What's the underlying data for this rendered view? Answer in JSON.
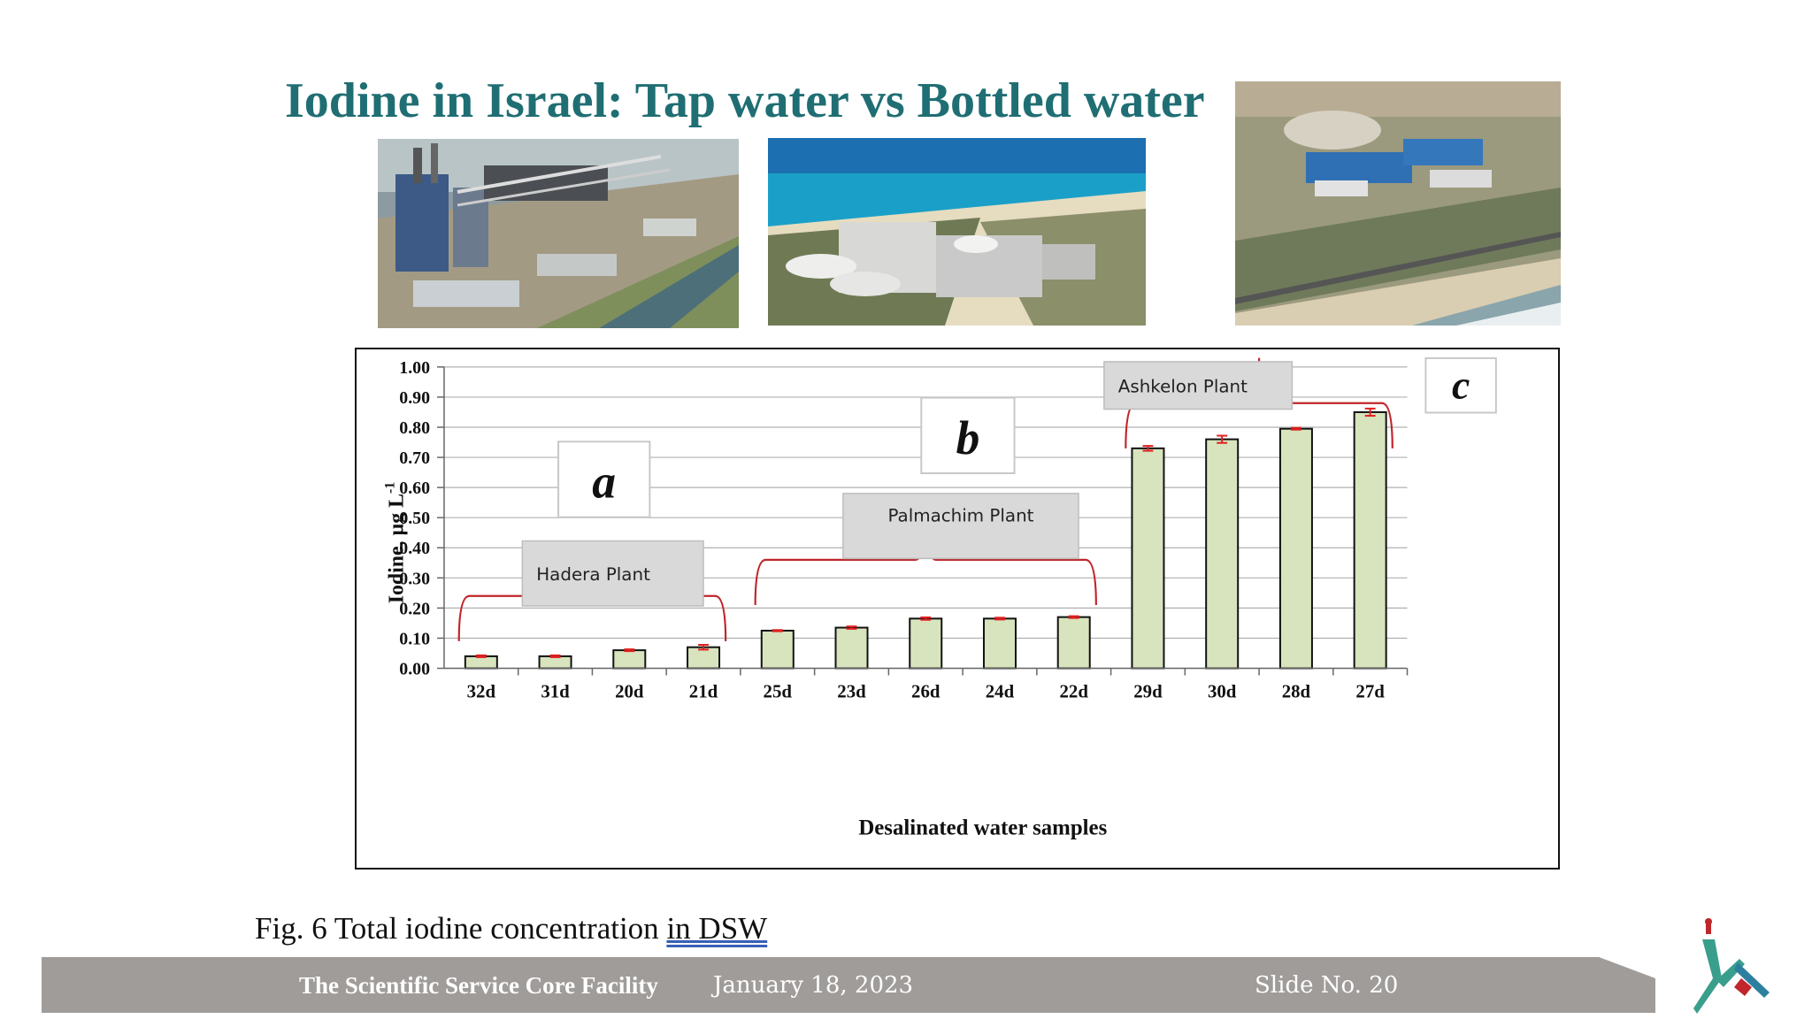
{
  "slide": {
    "title": "Iodine in Israel: Tap water vs Bottled water",
    "caption_prefix": "Fig.  6 Total iodine concentration ",
    "caption_link": "in  DSW"
  },
  "footer": {
    "facility": "The Scientific Service Core Facility",
    "date": "January 18, 2023",
    "slide_label": "Slide No. 20"
  },
  "colors": {
    "title": "#1f6e73",
    "bar_fill": "#d7e4bd",
    "bar_stroke": "#111111",
    "brace": "#c0262b",
    "error_bar": "#e02020",
    "label_box": "#d9d9d9",
    "footer_bar": "#a09c9a"
  },
  "chart_data": {
    "type": "bar",
    "categories": [
      "32d",
      "31d",
      "20d",
      "21d",
      "25d",
      "23d",
      "26d",
      "24d",
      "22d",
      "29d",
      "30d",
      "28d",
      "27d"
    ],
    "values": [
      0.04,
      0.04,
      0.06,
      0.07,
      0.125,
      0.135,
      0.165,
      0.165,
      0.17,
      0.73,
      0.76,
      0.795,
      0.85
    ],
    "errors": [
      0.003,
      0.003,
      0.003,
      0.008,
      0.002,
      0.004,
      0.004,
      0.003,
      0.003,
      0.008,
      0.012,
      0.003,
      0.012
    ],
    "ylim": [
      0,
      1.0
    ],
    "yticks": [
      "0.00",
      "0.10",
      "0.20",
      "0.30",
      "0.40",
      "0.50",
      "0.60",
      "0.70",
      "0.80",
      "0.90",
      "1.00"
    ],
    "ylabel": "Iodine, µg L",
    "ylabel_superscript": "-1",
    "xlabel": "Desalinated water samples",
    "grid": true,
    "groups": [
      {
        "letter": "a",
        "plant": "Hadera Plant",
        "start": 0,
        "end": 3
      },
      {
        "letter": "b",
        "plant": "Palmachim Plant",
        "start": 4,
        "end": 8
      },
      {
        "letter": "c",
        "plant": "Ashkelon  Plant",
        "start": 9,
        "end": 12
      }
    ]
  }
}
